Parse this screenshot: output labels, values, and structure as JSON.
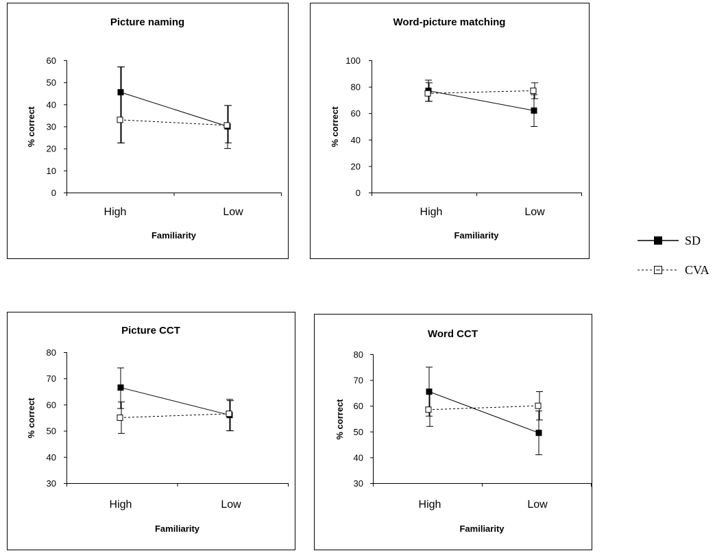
{
  "chart_data": [
    {
      "type": "line",
      "title": "Picture naming",
      "xlabel": "Familiarity",
      "ylabel": "% correct",
      "categories": [
        "High",
        "Low"
      ],
      "ylim": [
        0,
        60
      ],
      "yticks": [
        0,
        10,
        20,
        30,
        40,
        50,
        60
      ],
      "series": [
        {
          "name": "SD",
          "values": [
            45.5,
            30
          ],
          "error_low": [
            22.5,
            20
          ],
          "error_high": [
            57,
            39.5
          ]
        },
        {
          "name": "CVA",
          "values": [
            33,
            30.5
          ],
          "error_low": [
            22.5,
            22.5
          ],
          "error_high": [
            57,
            39.5
          ]
        }
      ]
    },
    {
      "type": "line",
      "title": "Word-picture matching",
      "xlabel": "Familiarity",
      "ylabel": "% correct",
      "categories": [
        "High",
        "Low"
      ],
      "ylim": [
        0,
        100
      ],
      "yticks": [
        0,
        20,
        40,
        60,
        80,
        100
      ],
      "series": [
        {
          "name": "SD",
          "values": [
            77,
            62
          ],
          "error_low": [
            69,
            50
          ],
          "error_high": [
            85,
            74
          ]
        },
        {
          "name": "CVA",
          "values": [
            75,
            77
          ],
          "error_low": [
            69,
            71
          ],
          "error_high": [
            83,
            83
          ]
        }
      ]
    },
    {
      "type": "line",
      "title": "Picture CCT",
      "xlabel": "Familiarity",
      "ylabel": "% correct",
      "categories": [
        "High",
        "Low"
      ],
      "ylim": [
        30,
        80
      ],
      "yticks": [
        30,
        40,
        50,
        60,
        70,
        80
      ],
      "series": [
        {
          "name": "SD",
          "values": [
            66.5,
            56
          ],
          "error_low": [
            58.5,
            50
          ],
          "error_high": [
            74,
            62
          ]
        },
        {
          "name": "CVA",
          "values": [
            55,
            56.5
          ],
          "error_low": [
            49,
            50
          ],
          "error_high": [
            61,
            61.5
          ]
        }
      ]
    },
    {
      "type": "line",
      "title": "Word CCT",
      "xlabel": "Familiarity",
      "ylabel": "% correct",
      "categories": [
        "High",
        "Low"
      ],
      "ylim": [
        30,
        80
      ],
      "yticks": [
        30,
        40,
        50,
        60,
        70,
        80
      ],
      "series": [
        {
          "name": "SD",
          "values": [
            65.5,
            49.5
          ],
          "error_low": [
            56,
            41
          ],
          "error_high": [
            75,
            58
          ]
        },
        {
          "name": "CVA",
          "values": [
            58.5,
            60
          ],
          "error_low": [
            52,
            54.5
          ],
          "error_high": [
            65,
            65.5
          ]
        }
      ]
    }
  ],
  "legend": {
    "entries": [
      {
        "name": "SD",
        "marker": "filled-square",
        "line": "solid"
      },
      {
        "name": "CVA",
        "marker": "open-square",
        "line": "dashed"
      }
    ]
  }
}
